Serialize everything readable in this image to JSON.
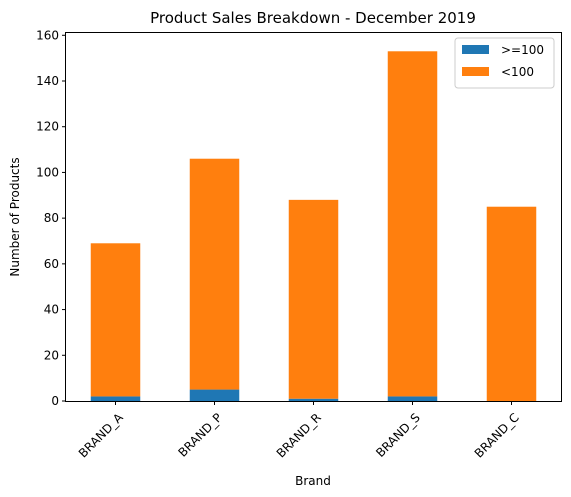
{
  "chart_data": {
    "type": "bar",
    "stacked": true,
    "title": "Product Sales Breakdown - December 2019",
    "xlabel": "Brand",
    "ylabel": "Number of Products",
    "categories": [
      "BRAND_A",
      "BRAND_P",
      "BRAND_R",
      "BRAND_S",
      "BRAND_C"
    ],
    "series": [
      {
        "name": ">=100",
        "color": "#1f77b4",
        "values": [
          2,
          5,
          1,
          2,
          0
        ]
      },
      {
        "name": "<100",
        "color": "#ff7f0e",
        "values": [
          67,
          101,
          87,
          151,
          85
        ]
      }
    ],
    "ylim": [
      0,
      161
    ],
    "yticks": [
      0,
      20,
      40,
      60,
      80,
      100,
      120,
      140,
      160
    ],
    "grid": false,
    "legend_position": "top-right"
  }
}
